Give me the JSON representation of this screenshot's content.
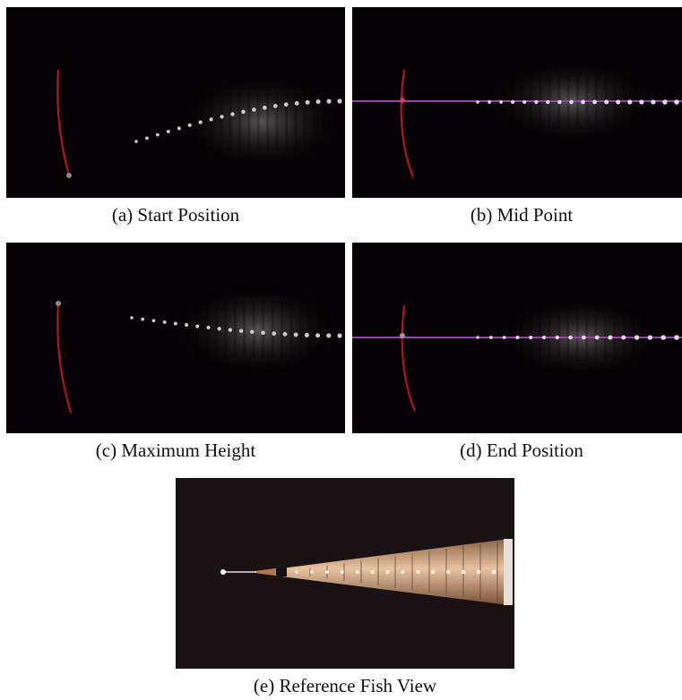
{
  "figure": {
    "panels": [
      {
        "caption": "(a) Start Position"
      },
      {
        "caption": "(b) Mid Point"
      },
      {
        "caption": "(c) Maximum Height"
      },
      {
        "caption": "(d) End Position"
      },
      {
        "caption": "(e) Reference Fish View"
      }
    ]
  }
}
